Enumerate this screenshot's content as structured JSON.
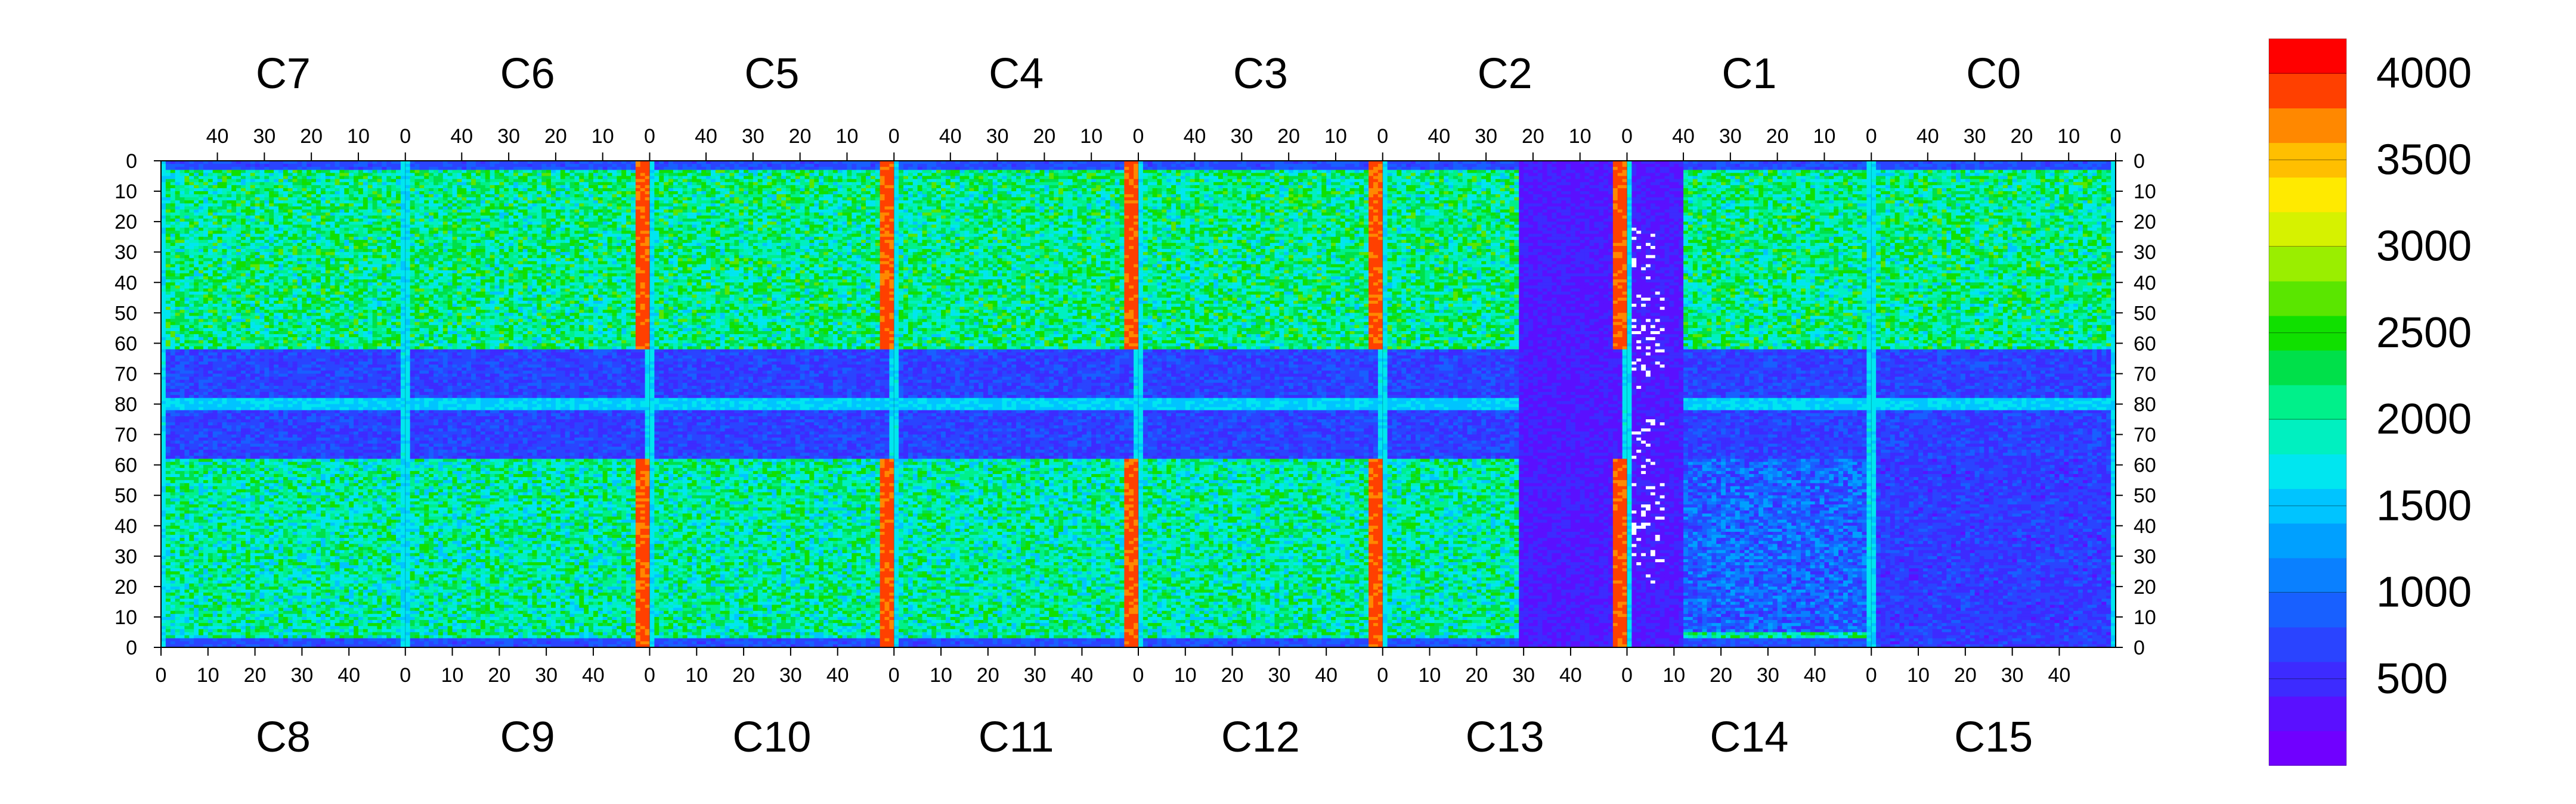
{
  "chart_data": {
    "type": "heatmap",
    "title": "",
    "xlabel": "",
    "ylabel": "",
    "layout": "16 chips in 2 rows of 8 (top row rotated 180 degrees)",
    "chip_columns": 52,
    "chip_rows": 80,
    "top_chips": [
      "C7",
      "C6",
      "C5",
      "C4",
      "C3",
      "C2",
      "C1",
      "C0"
    ],
    "bottom_chips": [
      "C8",
      "C9",
      "C10",
      "C11",
      "C12",
      "C13",
      "C14",
      "C15"
    ],
    "x_ticks_top": [
      "40",
      "30",
      "20",
      "10",
      "0"
    ],
    "x_ticks_bottom": [
      "0",
      "10",
      "20",
      "30",
      "40"
    ],
    "y_ticks": [
      "0",
      "10",
      "20",
      "30",
      "40",
      "50",
      "60",
      "70",
      "80",
      "70",
      "60",
      "50",
      "40",
      "30",
      "20",
      "10",
      "0"
    ],
    "colorbar": {
      "min": 0,
      "max": 4200,
      "levels": 20,
      "tick_values": [
        500,
        1000,
        1500,
        2000,
        2500,
        3000,
        3500,
        4000
      ],
      "tick_labels": [
        "500",
        "1000",
        "1500",
        "2000",
        "2500",
        "3000",
        "3500",
        "4000"
      ],
      "colors": [
        "#7000ff",
        "#5a10ff",
        "#3d2bff",
        "#2a44ff",
        "#1860ff",
        "#0a80ff",
        "#00a0ff",
        "#00c4ff",
        "#00e6f0",
        "#00f0c0",
        "#00f08a",
        "#00e04a",
        "#10e000",
        "#5ae600",
        "#9aee00",
        "#d6f200",
        "#ffea00",
        "#ffbf00",
        "#ff8800",
        "#ff4000",
        "#ff0000"
      ]
    },
    "regions": [
      {
        "name": "upper-chips-body",
        "value": 2200
      },
      {
        "name": "lower-chips-body",
        "value": 2100
      },
      {
        "name": "central-band",
        "value": 700
      },
      {
        "name": "chip-boundary-columns",
        "value": 1600
      },
      {
        "name": "hot-edge-columns",
        "value": 3900
      },
      {
        "name": "low-region-C13-C14",
        "value": 250
      }
    ]
  }
}
